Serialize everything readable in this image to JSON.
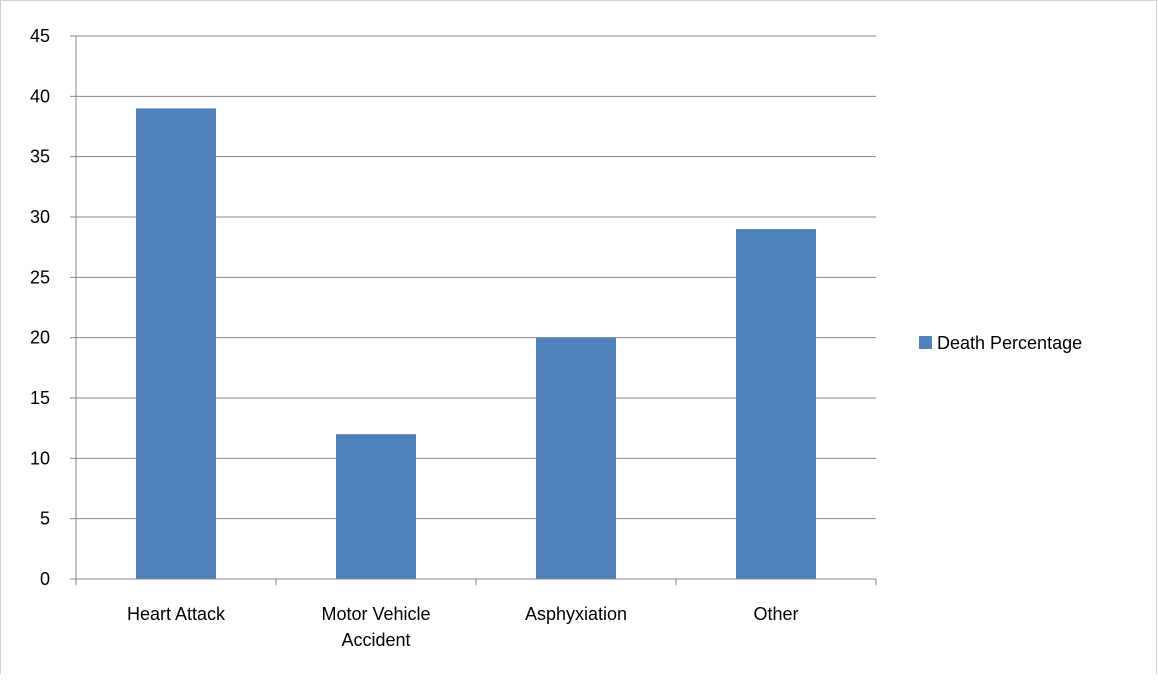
{
  "chart_data": {
    "type": "bar",
    "categories": [
      "Heart Attack",
      "Motor Vehicle Accident",
      "Asphyxiation",
      "Other"
    ],
    "category_label_lines": [
      [
        "Heart Attack"
      ],
      [
        "Motor Vehicle",
        "Accident"
      ],
      [
        "Asphyxiation"
      ],
      [
        "Other"
      ]
    ],
    "series": [
      {
        "name": "Death Percentage",
        "values": [
          39,
          12,
          20,
          29
        ],
        "color": "#4F81BD"
      }
    ],
    "title": "",
    "xlabel": "",
    "ylabel": "",
    "ylim": [
      0,
      45
    ],
    "yticks": [
      0,
      5,
      10,
      15,
      20,
      25,
      30,
      35,
      40,
      45
    ],
    "grid": true,
    "legend_position": "right"
  }
}
